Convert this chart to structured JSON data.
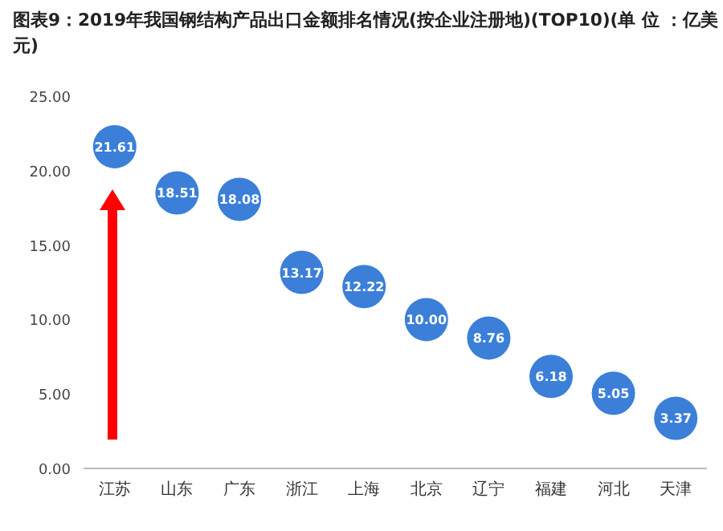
{
  "chart_data": {
    "type": "scatter",
    "title": "图表9：2019年我国钢结构产品出口金额排名情况(按企业注册地)(TOP10)(单 位 ：亿美元)",
    "categories": [
      "江苏",
      "山东",
      "广东",
      "浙江",
      "上海",
      "北京",
      "辽宁",
      "福建",
      "河北",
      "天津"
    ],
    "values": [
      21.61,
      18.51,
      18.08,
      13.17,
      12.22,
      10.0,
      8.76,
      6.18,
      5.05,
      3.37
    ],
    "value_labels": [
      "21.61",
      "18.51",
      "18.08",
      "13.17",
      "12.22",
      "10.00",
      "8.76",
      "6.18",
      "5.05",
      "3.37"
    ],
    "color": "#3b7fd9",
    "marker": "circle",
    "ylim": [
      0,
      25
    ],
    "yticks": [
      {
        "value": 0,
        "label": "0.00"
      },
      {
        "value": 5,
        "label": "5.00"
      },
      {
        "value": 10,
        "label": "10.00"
      },
      {
        "value": 15,
        "label": "15.00"
      },
      {
        "value": 20,
        "label": "20.00"
      },
      {
        "value": 25,
        "label": "25.00"
      }
    ]
  }
}
